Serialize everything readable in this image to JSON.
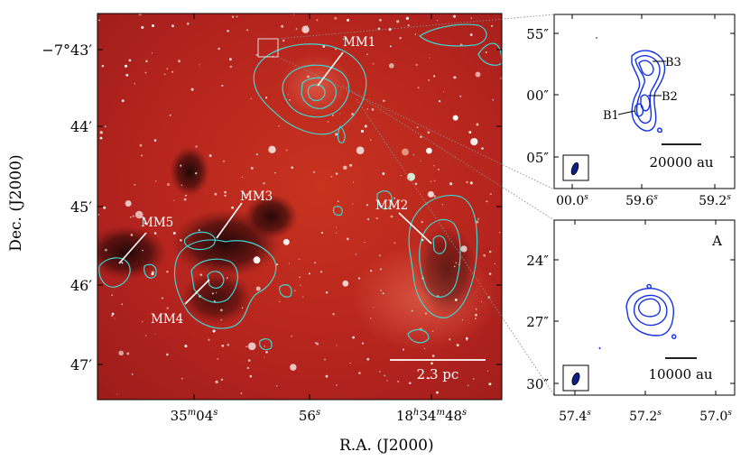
{
  "figure": {
    "ylabel": "Dec. (J2000)",
    "xlabel": "R.A. (J2000)"
  },
  "main_panel": {
    "dec_ticks": [
      {
        "label": "−7°43′"
      },
      {
        "label": "44′"
      },
      {
        "label": "45′"
      },
      {
        "label": "46′"
      },
      {
        "label": "47′"
      }
    ],
    "ra_ticks": [
      {
        "main": "35",
        "sup1": "m",
        "rest": "04",
        "sup2": "s"
      },
      {
        "main": "56",
        "sup1": "s",
        "rest": "",
        "sup2": ""
      },
      {
        "main": "18",
        "sup1": "h",
        "rest": "34",
        "sup2": "m",
        "rest2": "48",
        "sup3": "s"
      }
    ],
    "sources": [
      "MM1",
      "MM2",
      "MM3",
      "MM4",
      "MM5"
    ],
    "scalebar": "2.3 pc"
  },
  "inset_top": {
    "yticks": [
      "55″",
      "00″",
      "05″"
    ],
    "xticks": [
      {
        "main": "00.0",
        "sup": "s"
      },
      {
        "main": "59.6",
        "sup": "s"
      },
      {
        "main": "59.2",
        "sup": "s"
      }
    ],
    "labels": [
      "B3",
      "B2",
      "B1"
    ],
    "scalebar": "20000 au"
  },
  "inset_bottom": {
    "panel_label": "A",
    "yticks": [
      "24″",
      "27″",
      "30″"
    ],
    "xticks": [
      {
        "main": "57.4",
        "sup": "s"
      },
      {
        "main": "57.2",
        "sup": "s"
      },
      {
        "main": "57.0",
        "sup": "s"
      }
    ],
    "scalebar": "10000 au"
  },
  "colors": {
    "background_red": "#b3231e",
    "contour_cyan": "#3fd6d2",
    "contour_blue": "#1430e6",
    "beam_fill": "#0a1f8a"
  }
}
